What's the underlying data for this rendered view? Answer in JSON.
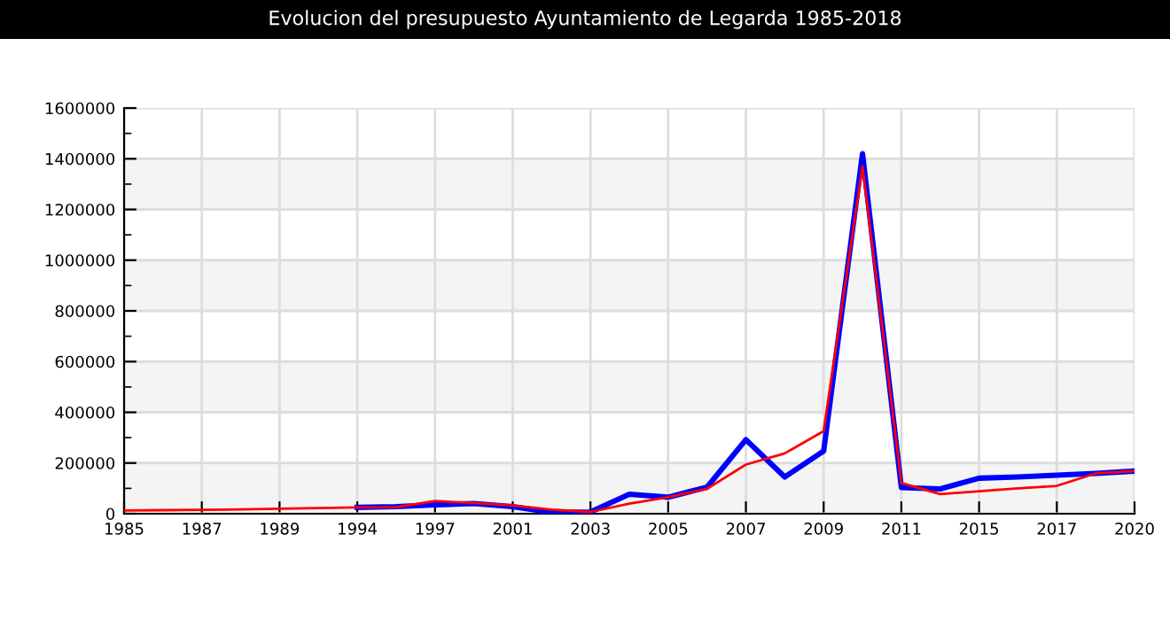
{
  "chart_data": {
    "type": "line",
    "title": "Evolucion del presupuesto Ayuntamiento de Legarda 1985-2018",
    "categories": [
      "1985",
      null,
      "1987",
      null,
      "1989",
      null,
      "1994",
      null,
      "1997",
      null,
      "2001",
      null,
      "2003",
      null,
      "2005",
      null,
      "2007",
      null,
      "2009",
      null,
      "2011",
      null,
      "2015",
      null,
      "2017",
      null,
      "2020"
    ],
    "series": [
      {
        "color": "#0000ff",
        "values": [
          null,
          null,
          null,
          null,
          null,
          null,
          25000,
          28000,
          35000,
          40000,
          28000,
          5000,
          7000,
          77000,
          65000,
          105000,
          292000,
          145000,
          247000,
          1420000,
          103000,
          98000,
          140000,
          145000,
          152000,
          159000,
          168000
        ]
      },
      {
        "color": "#ff0000",
        "values": [
          13000,
          14000,
          15000,
          17000,
          20000,
          22000,
          25000,
          26000,
          50000,
          42000,
          33000,
          16000,
          7000,
          40000,
          65000,
          98000,
          194000,
          238000,
          326000,
          1370000,
          121000,
          77000,
          89000,
          100000,
          110000,
          159000,
          168000
        ]
      }
    ],
    "ylim": [
      0,
      1600000
    ],
    "yticks": [
      0,
      200000,
      400000,
      600000,
      800000,
      1000000,
      1200000,
      1400000,
      1600000
    ],
    "grid": true,
    "marker": "none",
    "line_style": "solid"
  }
}
